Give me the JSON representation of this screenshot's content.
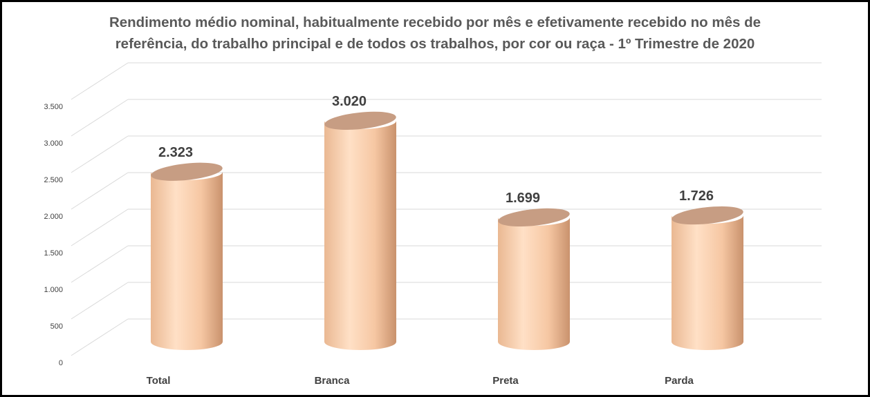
{
  "chart_data": {
    "type": "bar3d",
    "title": "Rendimento médio nominal, habitualmente recebido por mês e efetivamente recebido no mês de referência, do trabalho principal e de todos os trabalhos, por cor ou raça - 1º Trimestre de 2020",
    "categories": [
      "Total",
      "Branca",
      "Preta",
      "Parda"
    ],
    "values": [
      2323,
      3020,
      1699,
      1726
    ],
    "value_labels": [
      "2.323",
      "3.020",
      "1.699",
      "1.726"
    ],
    "color": "#f9cfae",
    "ylim": [
      0,
      3500
    ],
    "yticks": [
      0,
      500,
      {
        "value": 1000,
        "label": "1.000"
      },
      {
        "value": 1500,
        "label": "1.500"
      },
      {
        "value": 2000,
        "label": "2.000"
      },
      {
        "value": 2500,
        "label": "2.500"
      },
      {
        "value": 3000,
        "label": "3.000"
      },
      {
        "value": 3500,
        "label": "3.500"
      }
    ],
    "grid": true
  }
}
